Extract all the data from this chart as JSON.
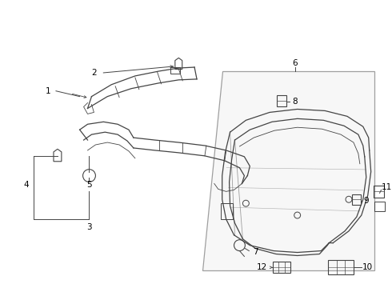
{
  "bg_color": "#ffffff",
  "line_color": "#444444",
  "label_color": "#000000",
  "label_fontsize": 7.5,
  "fig_width": 4.9,
  "fig_height": 3.6,
  "dpi": 100
}
